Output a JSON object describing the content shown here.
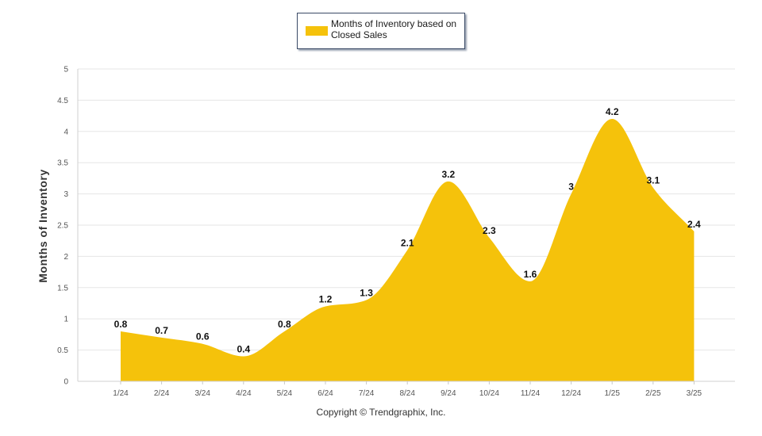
{
  "legend": {
    "label": "Months of Inventory based on Closed Sales",
    "color": "#F5C20B"
  },
  "footer": {
    "copyright": "Copyright © Trendgraphix, Inc."
  },
  "chart_data": {
    "type": "area",
    "ylabel": "Months of Inventory",
    "xlabel": "",
    "categories": [
      "1/24",
      "2/24",
      "3/24",
      "4/24",
      "5/24",
      "6/24",
      "7/24",
      "8/24",
      "9/24",
      "10/24",
      "11/24",
      "12/24",
      "1/25",
      "2/25",
      "3/25"
    ],
    "series": [
      {
        "name": "Months of Inventory based on Closed Sales",
        "values": [
          0.8,
          0.7,
          0.6,
          0.4,
          0.8,
          1.2,
          1.3,
          2.1,
          3.2,
          2.3,
          1.6,
          3,
          4.2,
          3.1,
          2.4
        ],
        "labels": [
          "0.8",
          "0.7",
          "0.6",
          "0.4",
          "0.8",
          "1.2",
          "1.3",
          "2.1",
          "3.2",
          "2.3",
          "1.6",
          "3",
          "4.2",
          "3.1",
          "2.4"
        ],
        "color": "#F5C20B"
      }
    ],
    "ylim": [
      0,
      5
    ],
    "yticks": [
      "0",
      "0.5",
      "1",
      "1.5",
      "2",
      "2.5",
      "3",
      "3.5",
      "4",
      "4.5",
      "5"
    ],
    "grid": true,
    "legend_position": "top-center"
  }
}
